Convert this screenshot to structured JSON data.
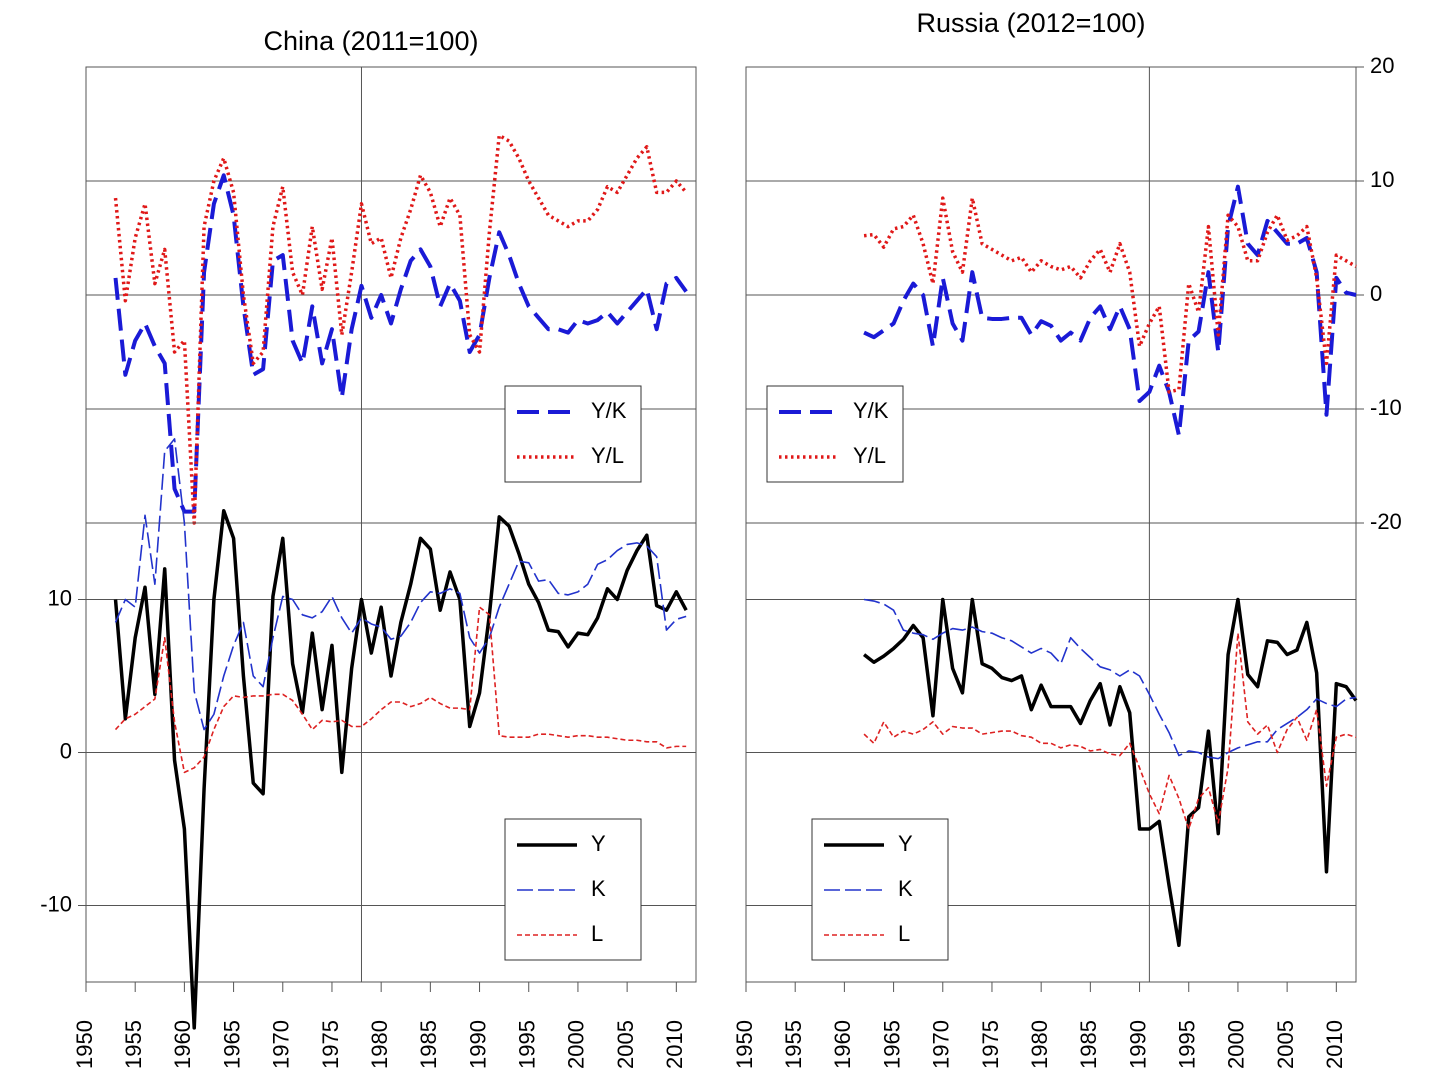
{
  "chart_data": [
    {
      "type": "line",
      "title": "China (2011=100)",
      "xlim": [
        1950,
        2012
      ],
      "ylim": [
        -20,
        20
      ],
      "yticks": [
        -20,
        -10,
        0,
        10,
        20
      ],
      "tick_labels": "none",
      "vline": 1978,
      "legend": "lower right",
      "x": [
        1953,
        1954,
        1955,
        1956,
        1957,
        1958,
        1959,
        1960,
        1961,
        1962,
        1963,
        1964,
        1965,
        1966,
        1967,
        1968,
        1969,
        1970,
        1971,
        1972,
        1973,
        1974,
        1975,
        1976,
        1977,
        1978,
        1979,
        1980,
        1981,
        1982,
        1983,
        1984,
        1985,
        1986,
        1987,
        1988,
        1989,
        1990,
        1991,
        1992,
        1993,
        1994,
        1995,
        1996,
        1997,
        1998,
        1999,
        2000,
        2001,
        2002,
        2003,
        2004,
        2005,
        2006,
        2007,
        2008,
        2009,
        2010,
        2011
      ],
      "series": [
        {
          "name": "Y/K",
          "color": "#1a1ad6",
          "line_style": "long-dash",
          "values": [
            1.5,
            -7,
            -4,
            -2.5,
            -4.5,
            -6,
            -17,
            -19,
            -19,
            2,
            8,
            10.5,
            7,
            -1,
            -7,
            -6.5,
            3,
            3.5,
            -4,
            -6,
            -1,
            -6,
            -3,
            -9,
            -3,
            0.8,
            -2,
            0,
            -2.5,
            0.5,
            3,
            4,
            2.5,
            -1,
            1,
            -0.5,
            -5,
            -3.5,
            1.5,
            5.5,
            3.5,
            1,
            -1,
            -2,
            -3,
            -3,
            -3.3,
            -2.2,
            -2.5,
            -2.2,
            -1.5,
            -2.5,
            -1.5,
            -0.5,
            0.5,
            -3,
            1,
            1.5,
            0.3
          ]
        },
        {
          "name": "Y/L",
          "color": "#e01818",
          "line_style": "dot",
          "values": [
            8.5,
            -0.5,
            5,
            8,
            1,
            4,
            -5,
            -4,
            -20,
            6,
            10,
            12,
            9,
            0,
            -6,
            -5,
            6,
            9.5,
            2,
            0,
            6,
            0.5,
            5,
            -3.5,
            2,
            8,
            4.5,
            5,
            1.5,
            5,
            7.5,
            10.5,
            9,
            6,
            8.5,
            7,
            -3.5,
            -5,
            5.5,
            14,
            13.5,
            12,
            10,
            8.5,
            7,
            6.5,
            6,
            6.5,
            6.5,
            7.5,
            9.5,
            9,
            10.5,
            12,
            13,
            9,
            9,
            10,
            9
          ]
        }
      ]
    },
    {
      "type": "line",
      "xlim": [
        1950,
        2012
      ],
      "ylim": [
        -15,
        15
      ],
      "yticks": [
        -10,
        0,
        10
      ],
      "tick_labels": "left",
      "xticks": [
        1950,
        1955,
        1960,
        1965,
        1970,
        1975,
        1980,
        1985,
        1990,
        1995,
        2000,
        2005,
        2010
      ],
      "vline": 1978,
      "legend": "lower right",
      "x": [
        1953,
        1954,
        1955,
        1956,
        1957,
        1958,
        1959,
        1960,
        1961,
        1962,
        1963,
        1964,
        1965,
        1966,
        1967,
        1968,
        1969,
        1970,
        1971,
        1972,
        1973,
        1974,
        1975,
        1976,
        1977,
        1978,
        1979,
        1980,
        1981,
        1982,
        1983,
        1984,
        1985,
        1986,
        1987,
        1988,
        1989,
        1990,
        1991,
        1992,
        1993,
        1994,
        1995,
        1996,
        1997,
        1998,
        1999,
        2000,
        2001,
        2002,
        2003,
        2004,
        2005,
        2006,
        2007,
        2008,
        2009,
        2010,
        2011
      ],
      "series": [
        {
          "name": "Y",
          "color": "#000000",
          "line_style": "solid",
          "values": [
            10,
            2.2,
            7.5,
            10.8,
            3.8,
            12,
            -0.5,
            -5,
            -18,
            -2.4,
            10,
            15.8,
            14,
            5,
            -2,
            -2.7,
            10.2,
            14,
            5.8,
            2.6,
            7.8,
            2.8,
            7,
            -1.3,
            5.5,
            10,
            6.5,
            9.5,
            5,
            8.5,
            11,
            14,
            13.3,
            9.3,
            11.8,
            10,
            1.7,
            3.9,
            9,
            15.4,
            14.8,
            13,
            11,
            9.8,
            8,
            7.9,
            6.9,
            7.8,
            7.7,
            8.8,
            10.7,
            10,
            11.9,
            13.2,
            14.2,
            9.6,
            9.3,
            10.5,
            9.3
          ]
        },
        {
          "name": "K",
          "color": "#2233cc",
          "line_style": "dash",
          "values": [
            8.5,
            10,
            9.5,
            15.5,
            11,
            19.7,
            20.5,
            15,
            4,
            1.5,
            2.5,
            5,
            7,
            8.5,
            5,
            4.3,
            7.5,
            10.2,
            10,
            9,
            8.8,
            9.2,
            10.2,
            8.8,
            7.8,
            8.8,
            8.4,
            8.2,
            7.4,
            7.6,
            8.5,
            9.8,
            10.5,
            10.4,
            10.7,
            10.4,
            7.5,
            6.5,
            7.5,
            9.5,
            11,
            12.5,
            12.4,
            11.2,
            11.3,
            10.4,
            10.3,
            10.5,
            11,
            12.3,
            12.6,
            13.2,
            13.6,
            13.7,
            13.5,
            12.8,
            8,
            8.7,
            8.9
          ]
        },
        {
          "name": "L",
          "color": "#dd2222",
          "line_style": "short-dash",
          "values": [
            1.5,
            2.2,
            2.5,
            3,
            3.5,
            7.5,
            2,
            -1.3,
            -1,
            -0.3,
            1.5,
            3,
            3.7,
            3.6,
            3.7,
            3.7,
            3.8,
            3.8,
            3.4,
            2.5,
            1.5,
            2.1,
            2,
            2.1,
            1.7,
            1.7,
            2.2,
            2.8,
            3.3,
            3.3,
            3,
            3.2,
            3.6,
            3.2,
            2.9,
            2.9,
            2.8,
            9.5,
            9,
            1.1,
            1,
            1,
            1,
            1.2,
            1.2,
            1.1,
            1,
            1.1,
            1.1,
            1,
            1,
            0.9,
            0.8,
            0.8,
            0.7,
            0.7,
            0.3,
            0.4,
            0.4
          ]
        }
      ]
    },
    {
      "type": "line",
      "title": "Russia (2012=100)",
      "xlim": [
        1950,
        2012
      ],
      "ylim": [
        -20,
        20
      ],
      "yticks": [
        -20,
        -10,
        0,
        10,
        20
      ],
      "tick_labels": "right",
      "vline": 1991,
      "legend": "lower left",
      "x": [
        1962,
        1963,
        1964,
        1965,
        1966,
        1967,
        1968,
        1969,
        1970,
        1971,
        1972,
        1973,
        1974,
        1975,
        1976,
        1977,
        1978,
        1979,
        1980,
        1981,
        1982,
        1983,
        1984,
        1985,
        1986,
        1987,
        1988,
        1989,
        1990,
        1991,
        1992,
        1993,
        1994,
        1995,
        1996,
        1997,
        1998,
        1999,
        2000,
        2001,
        2002,
        2003,
        2004,
        2005,
        2006,
        2007,
        2008,
        2009,
        2010,
        2011,
        2012
      ],
      "series": [
        {
          "name": "Y/K",
          "color": "#1a1ad6",
          "line_style": "long-dash",
          "values": [
            -3.3,
            -3.7,
            -3.1,
            -2.5,
            -0.5,
            1,
            0,
            -4.5,
            1.5,
            -2.5,
            -4,
            2,
            -2,
            -2.1,
            -2.1,
            -2,
            -2,
            -3.5,
            -2.3,
            -2.7,
            -4,
            -3.3,
            -4,
            -2,
            -1,
            -3,
            -1,
            -3,
            -9.3,
            -8.5,
            -6.2,
            -8.5,
            -12.3,
            -4,
            -3.2,
            2,
            -5,
            6,
            9.5,
            4.5,
            3.5,
            6.5,
            5.5,
            4.5,
            4.5,
            5,
            2,
            -10.5,
            1.5,
            0.2,
            0
          ]
        },
        {
          "name": "Y/L",
          "color": "#e01818",
          "line_style": "dot",
          "values": [
            5.2,
            5.3,
            4.2,
            5.8,
            6,
            7,
            4.5,
            1,
            8.5,
            3.8,
            2,
            8.5,
            4.5,
            4,
            3.5,
            3,
            3.3,
            2,
            3,
            2.5,
            2.2,
            2.5,
            1.5,
            3,
            4,
            2,
            4.5,
            2,
            -4.5,
            -2.5,
            -1,
            -8.5,
            -8.3,
            1,
            -1.5,
            6,
            -3.5,
            7,
            6,
            3,
            3,
            5.5,
            7,
            4.8,
            5.2,
            6,
            1.5,
            -6,
            3.5,
            3,
            2.5
          ]
        }
      ]
    },
    {
      "type": "line",
      "xlim": [
        1950,
        2012
      ],
      "ylim": [
        -15,
        15
      ],
      "yticks": [
        -10,
        0,
        10
      ],
      "tick_labels": "none",
      "xticks": [
        1950,
        1955,
        1960,
        1965,
        1970,
        1975,
        1980,
        1985,
        1990,
        1995,
        2000,
        2005,
        2010
      ],
      "vline": 1991,
      "legend": "lower left",
      "x": [
        1962,
        1963,
        1964,
        1965,
        1966,
        1967,
        1968,
        1969,
        1970,
        1971,
        1972,
        1973,
        1974,
        1975,
        1976,
        1977,
        1978,
        1979,
        1980,
        1981,
        1982,
        1983,
        1984,
        1985,
        1986,
        1987,
        1988,
        1989,
        1990,
        1991,
        1992,
        1993,
        1994,
        1995,
        1996,
        1997,
        1998,
        1999,
        2000,
        2001,
        2002,
        2003,
        2004,
        2005,
        2006,
        2007,
        2008,
        2009,
        2010,
        2011,
        2012
      ],
      "series": [
        {
          "name": "Y",
          "color": "#000000",
          "line_style": "solid",
          "values": [
            6.4,
            5.9,
            6.3,
            6.8,
            7.4,
            8.3,
            7.5,
            2.4,
            10,
            5.5,
            3.9,
            10,
            5.8,
            5.5,
            4.9,
            4.7,
            5,
            2.8,
            4.4,
            3,
            3,
            3,
            1.9,
            3.4,
            4.5,
            1.8,
            4.3,
            2.6,
            -5,
            -5,
            -4.5,
            -8.7,
            -12.6,
            -4.2,
            -3.6,
            1.4,
            -5.3,
            6.4,
            10,
            5.1,
            4.3,
            7.3,
            7.2,
            6.4,
            6.7,
            8.5,
            5.2,
            -7.8,
            4.5,
            4.3,
            3.4
          ]
        },
        {
          "name": "K",
          "color": "#2233cc",
          "line_style": "dash",
          "values": [
            10,
            9.9,
            9.7,
            9.3,
            8,
            7.8,
            7.7,
            7.4,
            7.8,
            8.1,
            8,
            8.2,
            7.9,
            7.8,
            7.5,
            7.3,
            6.9,
            6.5,
            6.8,
            6.5,
            5.8,
            7.5,
            6.8,
            6.2,
            5.6,
            5.4,
            5,
            5.4,
            5,
            3.8,
            2.5,
            1.3,
            -0.2,
            0.1,
            0,
            -0.3,
            -0.4,
            0,
            0.3,
            0.5,
            0.7,
            0.7,
            1.5,
            1.9,
            2.3,
            2.8,
            3.5,
            3.2,
            3,
            3.5,
            3.6
          ]
        },
        {
          "name": "L",
          "color": "#dd2222",
          "line_style": "short-dash",
          "values": [
            1.2,
            0.6,
            2,
            1,
            1.4,
            1.2,
            1.5,
            2,
            1.2,
            1.7,
            1.6,
            1.6,
            1.2,
            1.3,
            1.4,
            1.4,
            1.1,
            1,
            0.6,
            0.6,
            0.3,
            0.5,
            0.4,
            0.1,
            0.2,
            -0.1,
            -0.2,
            0.6,
            -1,
            -2.7,
            -4,
            -1.5,
            -3,
            -5,
            -3,
            -2.3,
            -4.6,
            -1,
            7.8,
            2,
            1.2,
            1.8,
            0,
            1.5,
            2.3,
            0.8,
            2.8,
            -2.2,
            1,
            1.2,
            1
          ]
        }
      ]
    }
  ]
}
